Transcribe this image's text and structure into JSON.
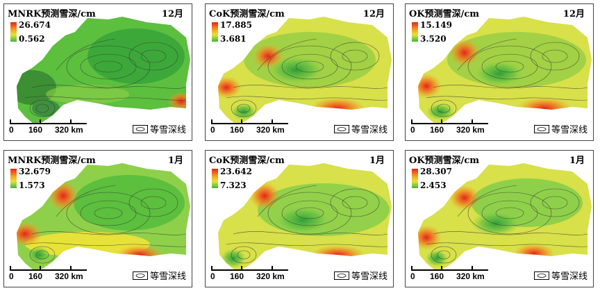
{
  "panels": [
    {
      "title": "MNRK预测雪深/cm",
      "month": "12月",
      "max": "26.674",
      "min": "0.562",
      "scale": {
        "s0": "0",
        "s1": "160",
        "s2": "320 km"
      },
      "legend": "等雪深线"
    },
    {
      "title": "CoK预测雪深/cm",
      "month": "12月",
      "max": "17.885",
      "min": "3.681",
      "scale": {
        "s0": "0",
        "s1": "160",
        "s2": "320 km"
      },
      "legend": "等雪深线"
    },
    {
      "title": "OK预测雪深/cm",
      "month": "12月",
      "max": "15.149",
      "min": "3.520",
      "scale": {
        "s0": "0",
        "s1": "160",
        "s2": "320 km"
      },
      "legend": "等雪深线"
    },
    {
      "title": "MNRK预测雪深/cm",
      "month": "1月",
      "max": "32.679",
      "min": "1.573",
      "scale": {
        "s0": "0",
        "s1": "160",
        "s2": "320 km"
      },
      "legend": "等雪深线"
    },
    {
      "title": "CoK预测雪深/cm",
      "month": "1月",
      "max": "23.642",
      "min": "7.323",
      "scale": {
        "s0": "0",
        "s1": "160",
        "s2": "320 km"
      },
      "legend": "等雪深线"
    },
    {
      "title": "OK预测雪深/cm",
      "month": "1月",
      "max": "28.307",
      "min": "2.453",
      "scale": {
        "s0": "0",
        "s1": "160",
        "s2": "320 km"
      },
      "legend": "等雪深线"
    }
  ],
  "colors": {
    "high": "#e8221a",
    "mid_high": "#f5a623",
    "mid": "#e6e23a",
    "low": "#3db83a"
  }
}
